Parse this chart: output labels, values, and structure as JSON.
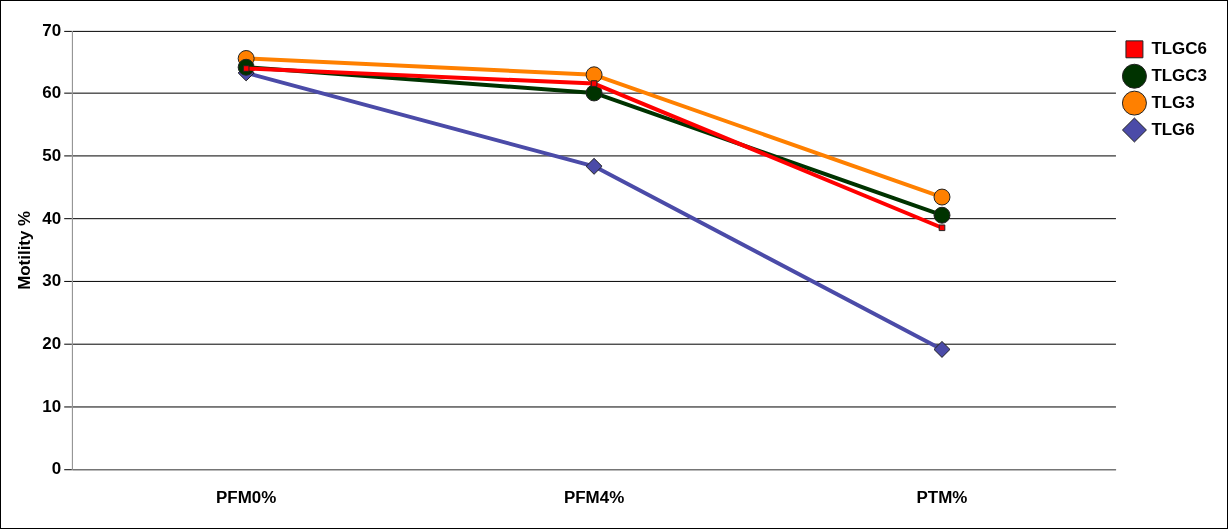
{
  "chart_data": {
    "type": "line",
    "ylabel": "Motility %",
    "categories": [
      "PFM0%",
      "PFM4%",
      "PTM%"
    ],
    "series": [
      {
        "name": "TLG6",
        "color": "#4b4ba8",
        "marker": "diamond",
        "values": [
          63.3,
          48.4,
          19.2
        ]
      },
      {
        "name": "TLGC6",
        "color": "#ff0000",
        "marker": "square",
        "values": [
          64,
          61.6,
          38.6
        ]
      },
      {
        "name": "TLG3",
        "color": "#ff8000",
        "marker": "circle",
        "values": [
          65.6,
          63,
          43.5
        ]
      },
      {
        "name": "TLGC3",
        "color": "#003300",
        "marker": "circle",
        "values": [
          64.2,
          60.1,
          40.6
        ]
      }
    ],
    "ylim": [
      0,
      70
    ],
    "yticks": [
      0,
      10,
      20,
      30,
      40,
      50,
      60,
      70
    ],
    "grid": "y",
    "legend": "top right"
  }
}
